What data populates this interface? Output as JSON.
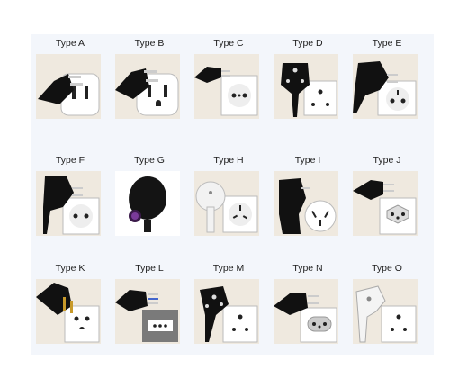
{
  "plug_types": [
    {
      "label": "Type A",
      "icon": "type-a-plug-icon"
    },
    {
      "label": "Type B",
      "icon": "type-b-plug-icon"
    },
    {
      "label": "Type C",
      "icon": "type-c-plug-icon"
    },
    {
      "label": "Type D",
      "icon": "type-d-plug-icon"
    },
    {
      "label": "Type E",
      "icon": "type-e-plug-icon"
    },
    {
      "label": "Type F",
      "icon": "type-f-plug-icon"
    },
    {
      "label": "Type G",
      "icon": "type-g-plug-icon"
    },
    {
      "label": "Type H",
      "icon": "type-h-plug-icon"
    },
    {
      "label": "Type I",
      "icon": "type-i-plug-icon"
    },
    {
      "label": "Type J",
      "icon": "type-j-plug-icon"
    },
    {
      "label": "Type K",
      "icon": "type-k-plug-icon"
    },
    {
      "label": "Type L",
      "icon": "type-l-plug-icon"
    },
    {
      "label": "Type M",
      "icon": "type-m-plug-icon"
    },
    {
      "label": "Type N",
      "icon": "type-n-plug-icon"
    },
    {
      "label": "Type O",
      "icon": "type-o-plug-icon"
    }
  ]
}
